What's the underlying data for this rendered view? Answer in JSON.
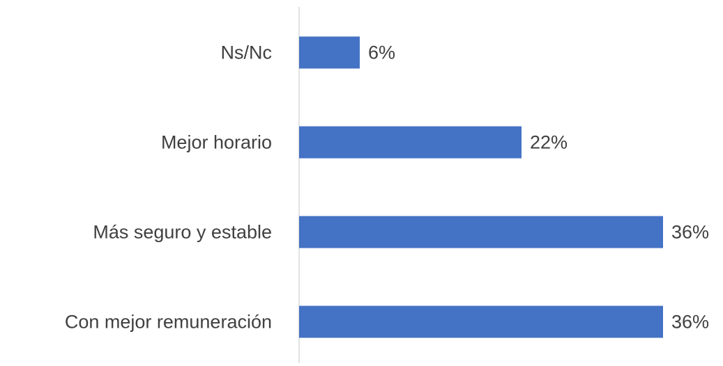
{
  "chart_data": {
    "type": "bar",
    "orientation": "horizontal",
    "categories": [
      "Ns/Nc",
      "Mejor horario",
      "Más seguro y estable",
      "Con mejor remuneración"
    ],
    "values": [
      6,
      22,
      36,
      36
    ],
    "value_labels": [
      "6%",
      "22%",
      "36%",
      "36%"
    ],
    "color": "#4472c4"
  }
}
